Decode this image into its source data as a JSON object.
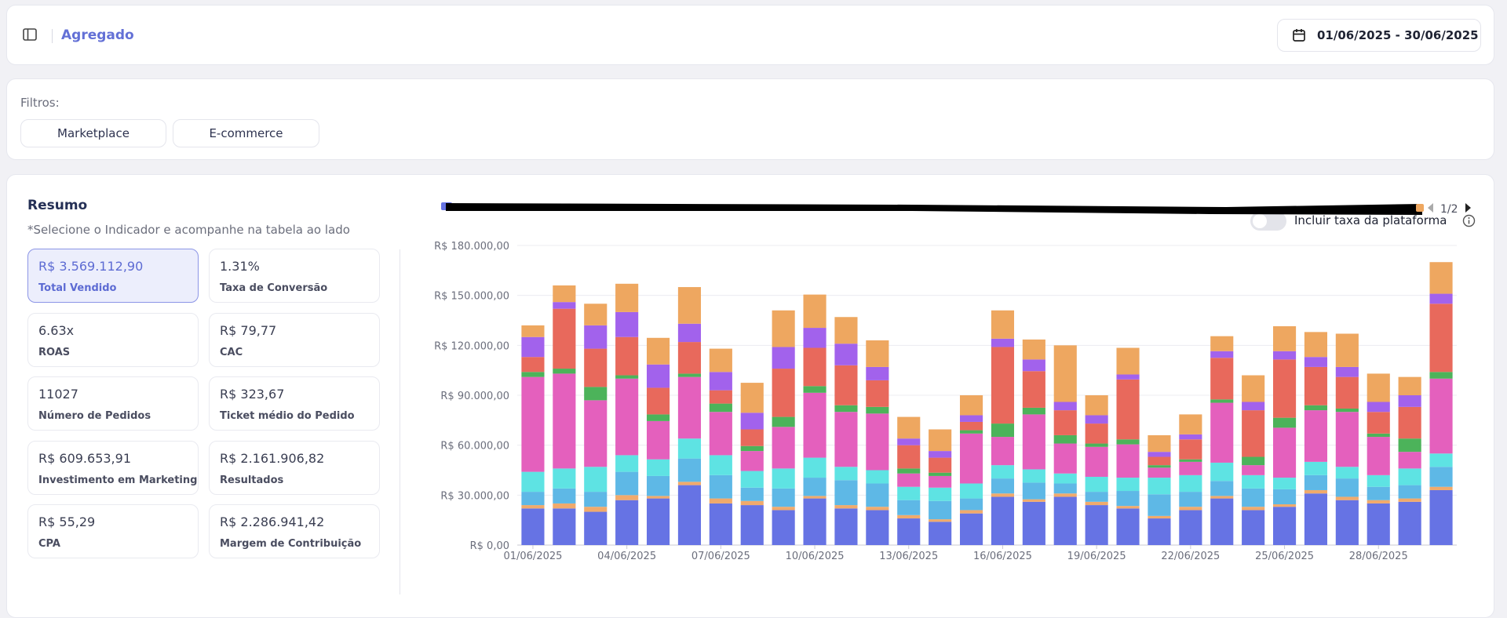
{
  "header": {
    "title": "Agregado",
    "date_range": "01/06/2025 - 30/06/2025"
  },
  "filters": {
    "label": "Filtros:",
    "buttons": [
      "Marketplace",
      "E-commerce"
    ]
  },
  "summary": {
    "title": "Resumo",
    "subtitle": "*Selecione o Indicador e acompanhe na tabela ao lado",
    "toggle_label": "Incluir taxa da plataforma",
    "pager": "1/2",
    "kpis": [
      {
        "value": "R$ 3.569.112,90",
        "label": "Total Vendido",
        "active": true
      },
      {
        "value": "1.31%",
        "label": "Taxa de Conversão"
      },
      {
        "value": "6.63x",
        "label": "ROAS"
      },
      {
        "value": "R$ 79,77",
        "label": "CAC"
      },
      {
        "value": "11027",
        "label": "Número de Pedidos"
      },
      {
        "value": "R$ 323,67",
        "label": "Ticket médio do Pedido"
      },
      {
        "value": "R$ 609.653,91",
        "label": "Investimento em Marketing"
      },
      {
        "value": "R$ 2.161.906,82",
        "label": "Resultados"
      },
      {
        "value": "R$ 55,29",
        "label": "CPA"
      },
      {
        "value": "R$ 2.286.941,42",
        "label": "Margem de Contribuição"
      }
    ]
  },
  "chart_data": {
    "type": "bar",
    "stacked": true,
    "ylim": [
      0,
      180000
    ],
    "y_ticks": [
      "R$ 0,00",
      "R$ 30.000,00",
      "R$ 60.000,00",
      "R$ 90.000,00",
      "R$ 120.000,00",
      "R$ 150.000,00",
      "R$ 180.000,00"
    ],
    "x_tick_labels": [
      "01/06/2025",
      "04/06/2025",
      "07/06/2025",
      "10/06/2025",
      "13/06/2025",
      "16/06/2025",
      "19/06/2025",
      "22/06/2025",
      "25/06/2025",
      "28/06/2025"
    ],
    "categories": [
      "01/06",
      "02/06",
      "03/06",
      "04/06",
      "05/06",
      "06/06",
      "07/06",
      "08/06",
      "09/06",
      "10/06",
      "11/06",
      "12/06",
      "13/06",
      "14/06",
      "15/06",
      "16/06",
      "17/06",
      "18/06",
      "19/06",
      "20/06",
      "21/06",
      "22/06",
      "23/06",
      "24/06",
      "25/06",
      "26/06",
      "27/06",
      "28/06",
      "29/06",
      "30/06"
    ],
    "colors": [
      "#6673e4",
      "#f0aa6c",
      "#5eb8e6",
      "#5ee3e3",
      "#e460bd",
      "#4cb35a",
      "#e8695c",
      "#a262ec",
      "#eea760"
    ],
    "series": [
      {
        "values": [
          22000,
          22000,
          20000,
          27000,
          28000,
          36000,
          25000,
          24000,
          21000,
          28000,
          22000,
          21000,
          16000,
          14000,
          19000,
          29000,
          26000,
          29000,
          24000,
          22000,
          16000,
          21000,
          28000,
          21000,
          23000,
          31000,
          27000,
          25000,
          26000,
          33000
        ]
      },
      {
        "values": [
          2000,
          3000,
          3000,
          3000,
          1500,
          2000,
          3000,
          2500,
          2000,
          1500,
          2000,
          2000,
          2000,
          1500,
          2000,
          2000,
          1500,
          2000,
          2000,
          1500,
          1500,
          2000,
          1500,
          2000,
          1500,
          2000,
          2000,
          2000,
          2000,
          2000
        ]
      },
      {
        "values": [
          8000,
          9000,
          9000,
          14000,
          12000,
          14000,
          14000,
          8000,
          11000,
          11000,
          15000,
          14000,
          9000,
          11000,
          7000,
          9000,
          10000,
          6000,
          6000,
          9000,
          13000,
          9000,
          9000,
          11000,
          9000,
          9000,
          11000,
          8000,
          8000,
          12000
        ]
      },
      {
        "values": [
          12000,
          12000,
          15000,
          10000,
          10000,
          12000,
          12000,
          10000,
          12000,
          12000,
          8000,
          8000,
          8000,
          8000,
          9000,
          8000,
          8000,
          6000,
          9000,
          8000,
          10000,
          10000,
          11000,
          8000,
          7000,
          8000,
          7000,
          7000,
          10000,
          8000
        ]
      },
      {
        "values": [
          57000,
          57000,
          40000,
          46000,
          23000,
          37000,
          26000,
          12000,
          25000,
          39000,
          33000,
          34000,
          8000,
          7000,
          30000,
          17000,
          33000,
          18000,
          18000,
          20000,
          6000,
          8000,
          36000,
          6000,
          30000,
          31000,
          33000,
          23000,
          10000,
          45000
        ]
      },
      {
        "values": [
          3000,
          3000,
          8000,
          2000,
          4000,
          2000,
          5000,
          3000,
          6000,
          4000,
          4000,
          4000,
          3000,
          2000,
          2000,
          8000,
          4000,
          5000,
          2000,
          3000,
          1500,
          1500,
          2000,
          5000,
          6000,
          3000,
          2000,
          2000,
          8000,
          4000
        ]
      },
      {
        "values": [
          9000,
          36000,
          23000,
          23000,
          16000,
          19000,
          8000,
          10000,
          29000,
          23000,
          24000,
          16000,
          14000,
          9000,
          5000,
          46000,
          22000,
          15000,
          12000,
          36000,
          5000,
          12000,
          25000,
          28000,
          35000,
          23000,
          19000,
          13000,
          19000,
          41000
        ]
      },
      {
        "values": [
          12000,
          4000,
          14000,
          15000,
          14000,
          11000,
          11000,
          10000,
          13000,
          12000,
          13000,
          8000,
          4000,
          4000,
          4000,
          5000,
          7000,
          5000,
          5000,
          3000,
          3000,
          3000,
          4000,
          5000,
          5000,
          6000,
          6000,
          6000,
          7000,
          6000
        ]
      },
      {
        "values": [
          7000,
          10000,
          13000,
          17000,
          16000,
          22000,
          14000,
          18000,
          22000,
          20000,
          16000,
          16000,
          13000,
          13000,
          12000,
          17000,
          12000,
          34000,
          12000,
          16000,
          10000,
          12000,
          9000,
          16000,
          15000,
          15000,
          20000,
          17000,
          11000,
          19000
        ]
      }
    ]
  }
}
